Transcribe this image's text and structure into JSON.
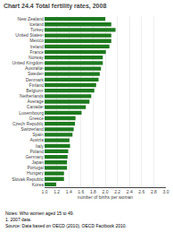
{
  "chart_data": {
    "type": "bar",
    "orientation": "horizontal",
    "title": "Chart 24.4 Total fertility rates, 2008",
    "categories": [
      "New Zealand",
      "Iceland",
      "Turkey",
      "United States¹",
      "Mexico",
      "Ireland",
      "France",
      "Norway",
      "United Kingdom",
      "Australia¹",
      "Sweden",
      "Denmark",
      "Finland",
      "Belgium¹",
      "Netherlands",
      "Average",
      "Canada¹",
      "Luxembourg",
      "Greece",
      "Czech Republic",
      "Switzerland",
      "Spain",
      "Austria",
      "Italy",
      "Poland",
      "Germany",
      "Japan",
      "Portugal",
      "Hungary",
      "Slovak Republic",
      "Korea"
    ],
    "values": [
      2.0,
      2.1,
      2.17,
      2.1,
      2.1,
      2.07,
      2.01,
      1.96,
      1.96,
      1.93,
      1.91,
      1.89,
      1.85,
      1.82,
      1.77,
      1.74,
      1.68,
      1.61,
      1.51,
      1.5,
      1.48,
      1.46,
      1.41,
      1.42,
      1.39,
      1.38,
      1.37,
      1.37,
      1.32,
      1.32,
      1.19
    ],
    "color": "#1e7a1e",
    "xlabel": "number of births per woman",
    "xlim": [
      1.0,
      3.0
    ],
    "xticks": [
      {
        "value": 1.0,
        "label": "1.0"
      },
      1.2,
      1.4,
      1.6,
      1.8,
      {
        "value": 2.0,
        "label": "2.0"
      },
      2.2,
      2.4,
      2.6,
      2.8,
      {
        "value": 3.0,
        "label": "3.0"
      }
    ],
    "grid": true,
    "annotations": [
      "Notes: Who women aged 15 to 49.",
      "1. 2007 data.",
      "Source: Data based on OECD (2010), OECD Factbook 2010."
    ]
  }
}
